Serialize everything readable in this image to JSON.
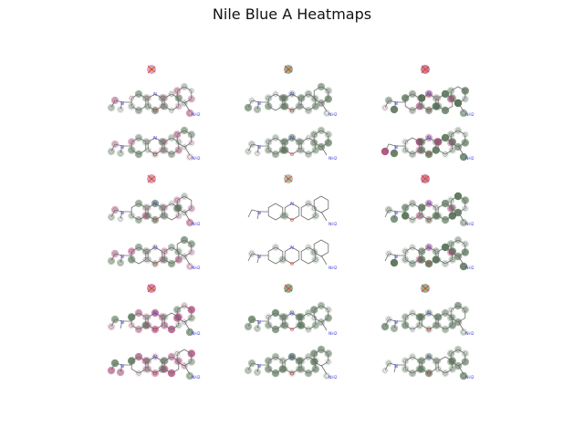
{
  "title": "Nile Blue A Heatmaps",
  "colors": {
    "bond": "#6e6e6e",
    "nitrogen": "#3b3bd9",
    "oxygen": "#d92b2b",
    "sulfur": "#c9b31a",
    "positive": "#2f5a2f",
    "negative": "#b0306e"
  },
  "molecule": {
    "amine_label": "NH2"
  },
  "panels": [
    {
      "label": "r1c1",
      "palette": "mixed",
      "intensity": 0.5
    },
    {
      "label": "r1c2",
      "palette": "green",
      "intensity": 0.6
    },
    {
      "label": "r1c3",
      "palette": "strong",
      "intensity": 0.9
    },
    {
      "label": "r2c1",
      "palette": "mixed",
      "intensity": 0.55
    },
    {
      "label": "r2c2",
      "palette": "sparse",
      "intensity": 0.35
    },
    {
      "label": "r2c3",
      "palette": "strong",
      "intensity": 0.85
    },
    {
      "label": "r3c1",
      "palette": "pinkheavy",
      "intensity": 0.75
    },
    {
      "label": "r3c2",
      "palette": "green",
      "intensity": 0.65
    },
    {
      "label": "r3c3",
      "palette": "green",
      "intensity": 0.6
    }
  ]
}
